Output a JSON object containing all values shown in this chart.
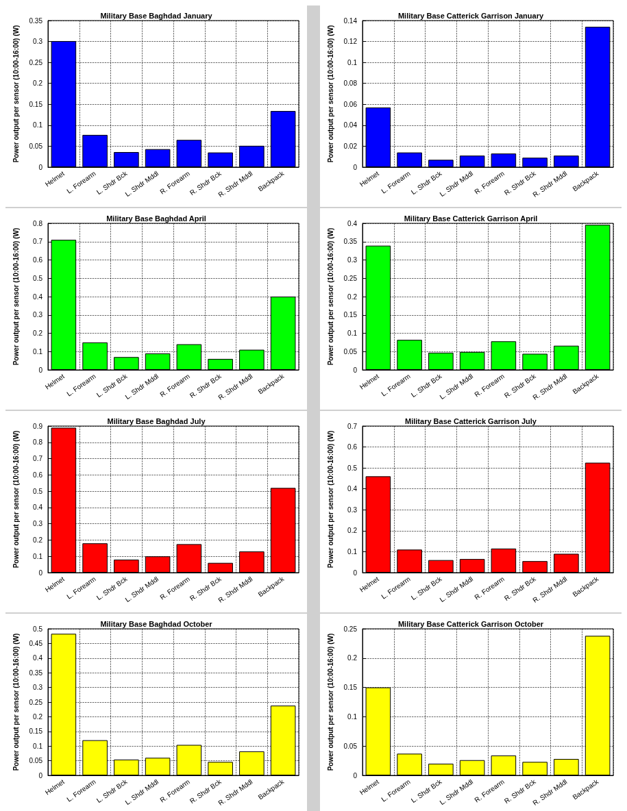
{
  "chart_data": [
    {
      "type": "bar",
      "title": "Military Base Baghdad January",
      "ylabel": "Power output per sensor (10:00-16:00) (W)",
      "categories": [
        "Helmet",
        "L. Forearm",
        "L. Shdr Bck",
        "L. Shdr Mddl",
        "R. Forearm",
        "R. Shdr Bck",
        "R. Shdr Mddl",
        "Backpack"
      ],
      "values": [
        0.301,
        0.077,
        0.036,
        0.043,
        0.065,
        0.035,
        0.051,
        0.134
      ],
      "color": "#0000ff",
      "ylim": [
        0,
        0.35
      ],
      "yticks": [
        0,
        0.05,
        0.1,
        0.15,
        0.2,
        0.25,
        0.3,
        0.35
      ],
      "grid": true
    },
    {
      "type": "bar",
      "title": "Military Base Catterick Garrison January",
      "ylabel": "Power output per sensor (10:00-16:00) (W)",
      "categories": [
        "Helmet",
        "L. Forearm",
        "L. Shdr Bck",
        "L. Shdr Mddl",
        "R. Forearm",
        "R. Shdr Bck",
        "R. Shdr Mddl",
        "Backpack"
      ],
      "values": [
        0.057,
        0.014,
        0.007,
        0.011,
        0.013,
        0.009,
        0.011,
        0.134
      ],
      "color": "#0000ff",
      "ylim": [
        0,
        0.14
      ],
      "yticks": [
        0,
        0.02,
        0.04,
        0.06,
        0.08,
        0.1,
        0.12,
        0.14
      ],
      "grid": true
    },
    {
      "type": "bar",
      "title": "Military Base Baghdad April",
      "ylabel": "Power output per sensor (10:00-16:00) (W)",
      "categories": [
        "Helmet",
        "L. Forearm",
        "L. Shdr Bck",
        "L. Shdr Mddl",
        "R. Forearm",
        "R. Shdr Bck",
        "R. Shdr Mddl",
        "Backpack"
      ],
      "values": [
        0.71,
        0.15,
        0.07,
        0.09,
        0.14,
        0.06,
        0.11,
        0.4
      ],
      "color": "#00ff00",
      "ylim": [
        0,
        0.8
      ],
      "yticks": [
        0,
        0.1,
        0.2,
        0.3,
        0.4,
        0.5,
        0.6,
        0.7,
        0.8
      ],
      "grid": true
    },
    {
      "type": "bar",
      "title": "Military Base Catterick Garrison April",
      "ylabel": "Power output per sensor (10:00-16:00) (W)",
      "categories": [
        "Helmet",
        "L. Forearm",
        "L. Shdr Bck",
        "L. Shdr Mddl",
        "R. Forearm",
        "R. Shdr Bck",
        "R. Shdr Mddl",
        "Backpack"
      ],
      "values": [
        0.339,
        0.082,
        0.047,
        0.049,
        0.078,
        0.044,
        0.066,
        0.396
      ],
      "color": "#00ff00",
      "ylim": [
        0,
        0.4
      ],
      "yticks": [
        0,
        0.05,
        0.1,
        0.15,
        0.2,
        0.25,
        0.3,
        0.35,
        0.4
      ],
      "grid": true
    },
    {
      "type": "bar",
      "title": "Military Base Baghdad July",
      "ylabel": "Power output per sensor (10:00-16:00) (W)",
      "categories": [
        "Helmet",
        "L. Forearm",
        "L. Shdr Bck",
        "L. Shdr Mddl",
        "R. Forearm",
        "R. Shdr Bck",
        "R. Shdr Mddl",
        "Backpack"
      ],
      "values": [
        0.89,
        0.18,
        0.08,
        0.1,
        0.175,
        0.06,
        0.13,
        0.52
      ],
      "color": "#ff0000",
      "ylim": [
        0,
        0.9
      ],
      "yticks": [
        0,
        0.1,
        0.2,
        0.3,
        0.4,
        0.5,
        0.6,
        0.7,
        0.8,
        0.9
      ],
      "grid": true
    },
    {
      "type": "bar",
      "title": "Military Base Catterick Garrison July",
      "ylabel": "Power output per sensor (10:00-16:00) (W)",
      "categories": [
        "Helmet",
        "L. Forearm",
        "L. Shdr Bck",
        "L. Shdr Mddl",
        "R. Forearm",
        "R. Shdr Bck",
        "R. Shdr Mddl",
        "Backpack"
      ],
      "values": [
        0.46,
        0.11,
        0.06,
        0.065,
        0.115,
        0.055,
        0.09,
        0.525
      ],
      "color": "#ff0000",
      "ylim": [
        0,
        0.7
      ],
      "yticks": [
        0,
        0.1,
        0.2,
        0.3,
        0.4,
        0.5,
        0.6,
        0.7
      ],
      "grid": true
    },
    {
      "type": "bar",
      "title": "Military Base Baghdad October",
      "ylabel": "Power output per sensor (10:00-16:00) (W)",
      "categories": [
        "Helmet",
        "L. Forearm",
        "L. Shdr Bck",
        "L. Shdr Mddl",
        "R. Forearm",
        "R. Shdr Bck",
        "R. Shdr Mddl",
        "Backpack"
      ],
      "values": [
        0.483,
        0.12,
        0.054,
        0.06,
        0.104,
        0.046,
        0.082,
        0.238
      ],
      "color": "#ffff00",
      "ylim": [
        0,
        0.5
      ],
      "yticks": [
        0,
        0.05,
        0.1,
        0.15,
        0.2,
        0.25,
        0.3,
        0.35,
        0.4,
        0.45,
        0.5
      ],
      "grid": true
    },
    {
      "type": "bar",
      "title": "Military Base Catterick Garrison October",
      "ylabel": "Power output per sensor (10:00-16:00) (W)",
      "categories": [
        "Helmet",
        "L. Forearm",
        "L. Shdr Bck",
        "L. Shdr Mddl",
        "R. Forearm",
        "R. Shdr Bck",
        "R. Shdr Mddl",
        "Backpack"
      ],
      "values": [
        0.15,
        0.037,
        0.02,
        0.026,
        0.034,
        0.023,
        0.028,
        0.238
      ],
      "color": "#ffff00",
      "ylim": [
        0,
        0.25
      ],
      "yticks": [
        0,
        0.05,
        0.1,
        0.15,
        0.2,
        0.25
      ],
      "grid": true
    }
  ]
}
